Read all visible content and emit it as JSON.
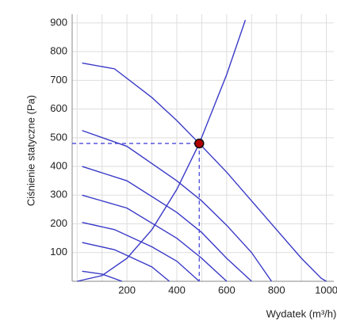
{
  "chart_data": {
    "type": "line",
    "x_label": "Wydatek (m³/h)",
    "y_label": "Ciśnienie statyczne (Pa)",
    "xlim": [
      -20,
      1030
    ],
    "ylim": [
      0,
      930
    ],
    "xticks": [
      200,
      400,
      600,
      800,
      1000
    ],
    "yticks": [
      100,
      200,
      300,
      400,
      500,
      600,
      700,
      800,
      900
    ],
    "xgrid": [
      0,
      100,
      200,
      300,
      400,
      500,
      600,
      700,
      800,
      900,
      1000
    ],
    "grid": true,
    "series": [
      {
        "color": "#3a3ac8",
        "x": [
          20,
          150,
          300,
          400,
          490,
          600,
          700,
          800,
          900,
          980,
          1000
        ],
        "values": [
          760,
          740,
          640,
          560,
          480,
          380,
          280,
          180,
          80,
          10,
          0
        ]
      },
      {
        "color": "#3a3ac8",
        "x": [
          20,
          200,
          400,
          500,
          600,
          700,
          780
        ],
        "values": [
          525,
          470,
          350,
          280,
          195,
          100,
          0
        ]
      },
      {
        "color": "#3a3ac8",
        "x": [
          20,
          200,
          400,
          500,
          600,
          700
        ],
        "values": [
          400,
          350,
          240,
          170,
          80,
          0
        ]
      },
      {
        "color": "#3a3ac8",
        "x": [
          20,
          200,
          400,
          500,
          600
        ],
        "values": [
          300,
          255,
          150,
          80,
          0
        ]
      },
      {
        "color": "#3a3ac8",
        "x": [
          20,
          150,
          300,
          400,
          490
        ],
        "values": [
          205,
          180,
          120,
          70,
          0
        ]
      },
      {
        "color": "#3a3ac8",
        "x": [
          20,
          150,
          300,
          370
        ],
        "values": [
          135,
          110,
          50,
          0
        ]
      },
      {
        "color": "#3a3ac8",
        "x": [
          20,
          100,
          180
        ],
        "values": [
          35,
          25,
          0
        ]
      },
      {
        "color": "#3a3ac8",
        "x": [
          0,
          100,
          200,
          300,
          400,
          490,
          600,
          675
        ],
        "values": [
          0,
          20,
          80,
          180,
          320,
          480,
          720,
          910
        ]
      }
    ],
    "point": {
      "x": 490,
      "y": 480,
      "color": "#b00000"
    }
  }
}
